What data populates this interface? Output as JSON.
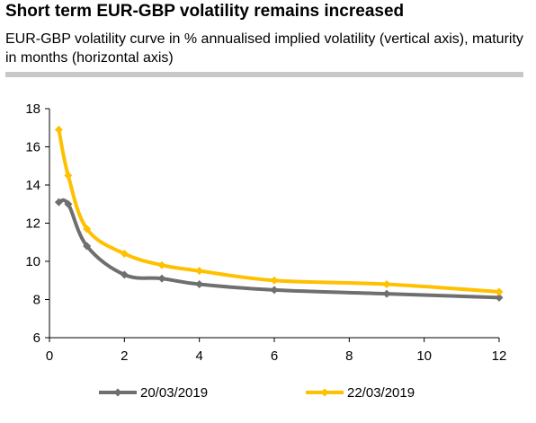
{
  "title": "Short term EUR-GBP volatility remains increased",
  "subtitle": "EUR-GBP volatility curve in % annualised implied volatility (vertical axis), maturity in months (horizontal axis)",
  "chart_data": {
    "type": "line",
    "xlim": [
      0,
      12
    ],
    "ylim": [
      6,
      18
    ],
    "x_ticks": [
      "0",
      "2",
      "4",
      "6",
      "8",
      "10",
      "12"
    ],
    "y_ticks": [
      "6",
      "8",
      "10",
      "12",
      "14",
      "16",
      "18"
    ],
    "grid": false,
    "legend_position": "bottom-center",
    "series": [
      {
        "name": "20/03/2019",
        "color": "#6f6f6f",
        "x": [
          0.25,
          0.5,
          1,
          2,
          3,
          4,
          6,
          9,
          12
        ],
        "y": [
          13.1,
          13.0,
          10.8,
          9.3,
          9.1,
          8.8,
          8.5,
          8.3,
          8.1
        ]
      },
      {
        "name": "22/03/2019",
        "color": "#ffc000",
        "x": [
          0.25,
          0.5,
          1,
          2,
          3,
          4,
          6,
          9,
          12
        ],
        "y": [
          16.9,
          14.5,
          11.7,
          10.4,
          9.8,
          9.5,
          9.0,
          8.8,
          8.4
        ]
      }
    ]
  }
}
